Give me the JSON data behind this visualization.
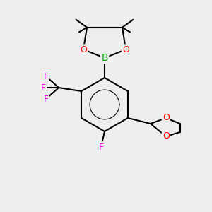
{
  "bg_color": "#eeeeee",
  "bond_color": "#000000",
  "bond_lw": 1.5,
  "atom_colors": {
    "B": "#00aa00",
    "O": "#ff0000",
    "F": "#ff00ff",
    "C": "#000000"
  },
  "font_size": 9,
  "font_size_small": 8
}
